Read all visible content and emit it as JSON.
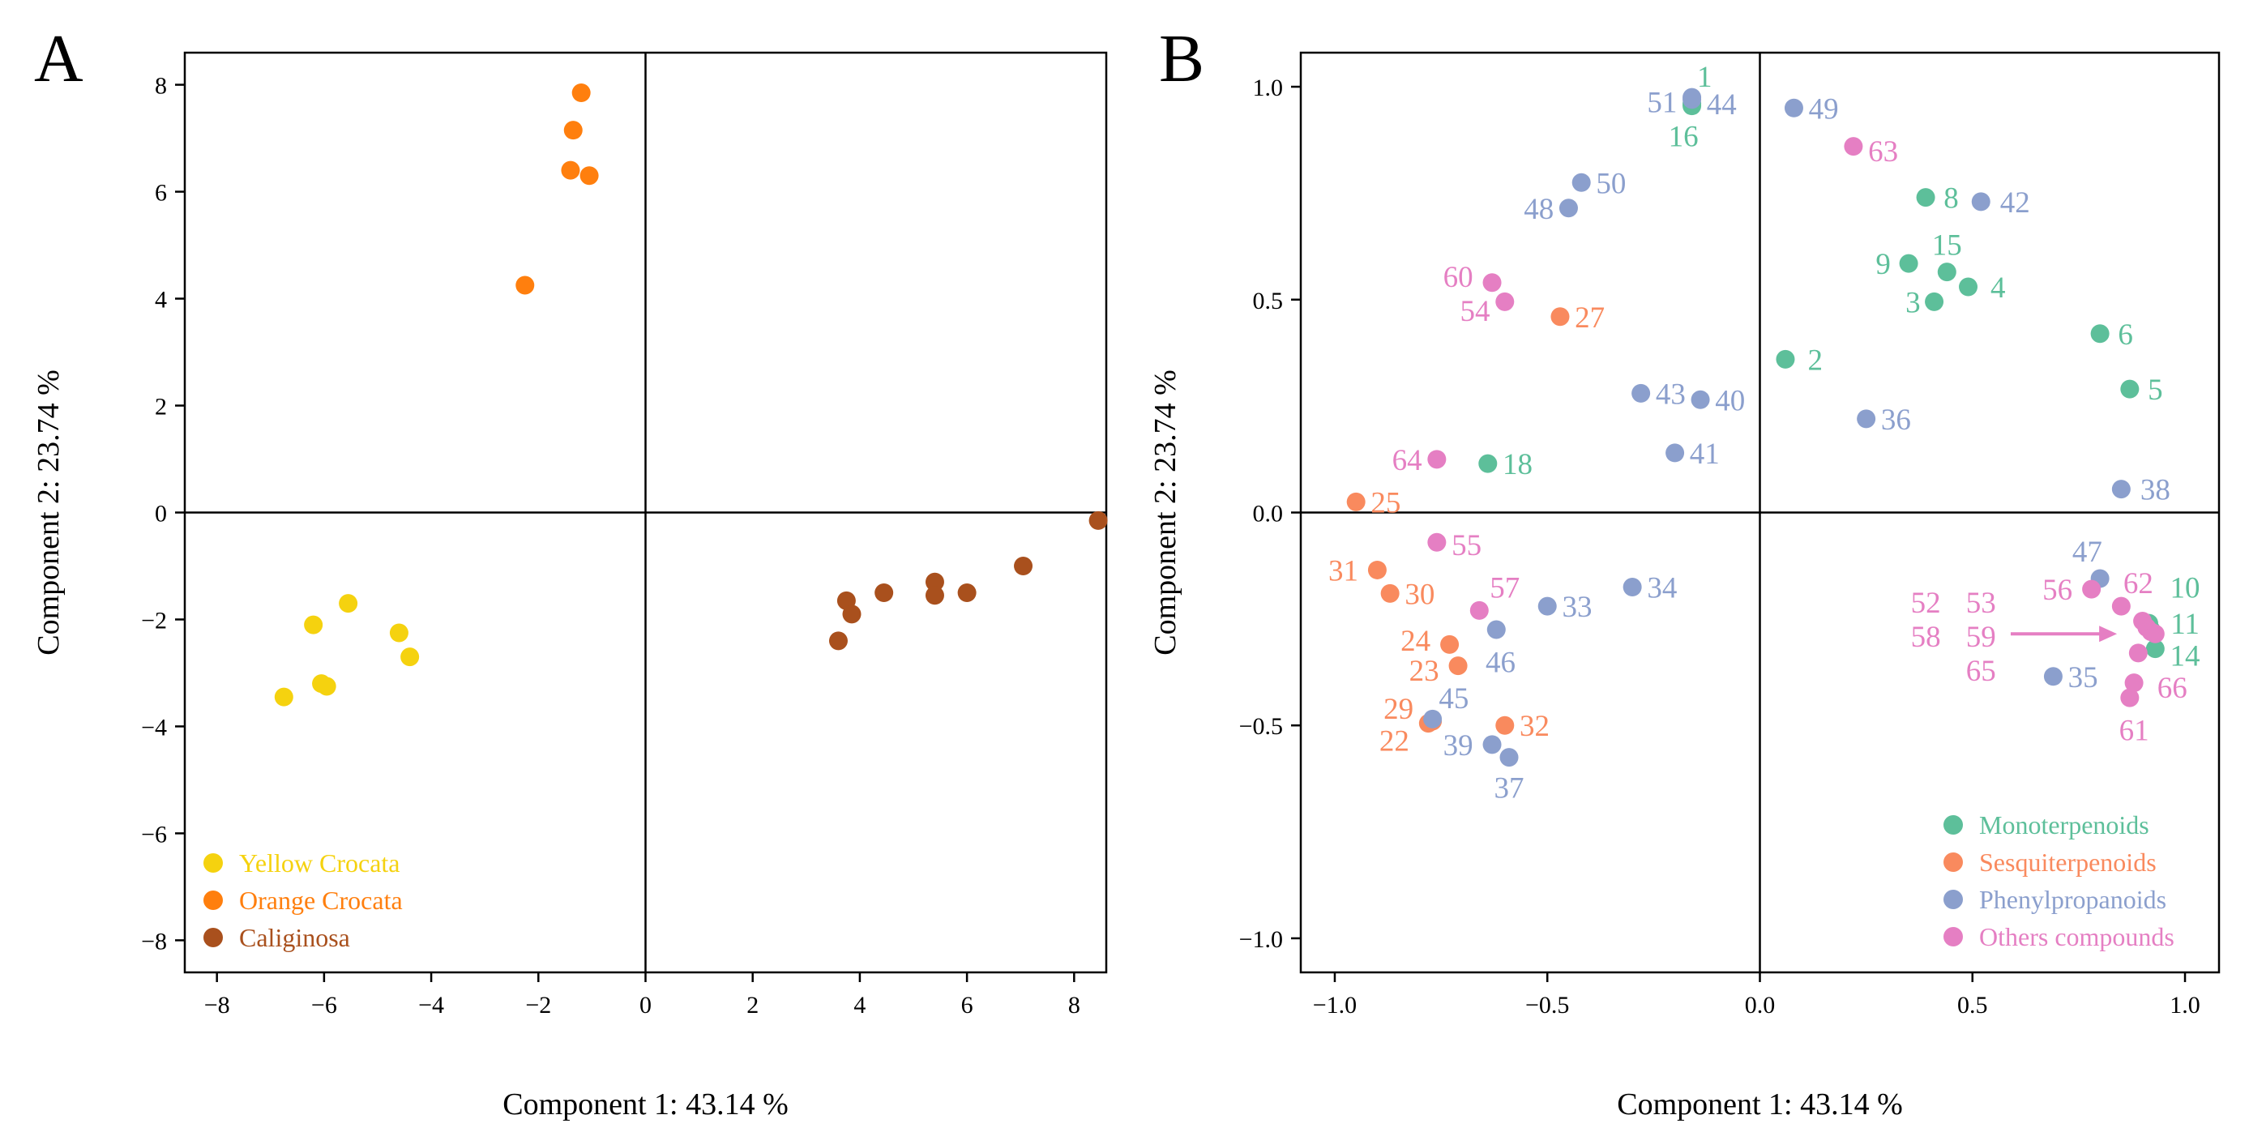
{
  "chart_data": [
    {
      "type": "scatter",
      "panel_label": "A",
      "title": "",
      "xlabel": "Component 1:  43.14 %",
      "ylabel": "Component 2:  23.74 %",
      "xlim": [
        -8.6,
        8.6
      ],
      "ylim": [
        -8.6,
        8.6
      ],
      "xticks": [
        {
          "value": -8,
          "label": "−8"
        },
        {
          "value": -6,
          "label": "−6"
        },
        {
          "value": -4,
          "label": "−4"
        },
        {
          "value": -2,
          "label": "−2"
        },
        {
          "value": 0,
          "label": "0"
        },
        {
          "value": 2,
          "label": "2"
        },
        {
          "value": 4,
          "label": "4"
        },
        {
          "value": 6,
          "label": "6"
        },
        {
          "value": 8,
          "label": "8"
        }
      ],
      "yticks": [
        {
          "value": -8,
          "label": "−8"
        },
        {
          "value": -6,
          "label": "−6"
        },
        {
          "value": -4,
          "label": "−4"
        },
        {
          "value": -2,
          "label": "−2"
        },
        {
          "value": 0,
          "label": "0"
        },
        {
          "value": 2,
          "label": "2"
        },
        {
          "value": 4,
          "label": "4"
        },
        {
          "value": 6,
          "label": "6"
        },
        {
          "value": 8,
          "label": "8"
        }
      ],
      "legend_position": "bottom-left",
      "series": [
        {
          "name": "Yellow Crocata",
          "color": "#f5d20f",
          "points": [
            {
              "x": -6.75,
              "y": -3.45
            },
            {
              "x": -6.2,
              "y": -2.1
            },
            {
              "x": -6.05,
              "y": -3.2
            },
            {
              "x": -5.95,
              "y": -3.25
            },
            {
              "x": -5.55,
              "y": -1.7
            },
            {
              "x": -4.6,
              "y": -2.25
            },
            {
              "x": -4.4,
              "y": -2.7
            }
          ]
        },
        {
          "name": "Orange Crocata",
          "color": "#ff7f0e",
          "points": [
            {
              "x": -2.25,
              "y": 4.25
            },
            {
              "x": -1.4,
              "y": 6.4
            },
            {
              "x": -1.35,
              "y": 7.15
            },
            {
              "x": -1.2,
              "y": 7.85
            },
            {
              "x": -1.05,
              "y": 6.3
            }
          ]
        },
        {
          "name": "Caliginosa",
          "color": "#a9501d",
          "points": [
            {
              "x": 3.6,
              "y": -2.4
            },
            {
              "x": 3.75,
              "y": -1.65
            },
            {
              "x": 3.85,
              "y": -1.9
            },
            {
              "x": 4.45,
              "y": -1.5
            },
            {
              "x": 5.4,
              "y": -1.3
            },
            {
              "x": 5.4,
              "y": -1.55
            },
            {
              "x": 6.0,
              "y": -1.5
            },
            {
              "x": 7.05,
              "y": -1.0
            },
            {
              "x": 8.45,
              "y": -0.15
            }
          ]
        }
      ]
    },
    {
      "type": "scatter",
      "panel_label": "B",
      "title": "",
      "xlabel": "Component 1:  43.14 %",
      "ylabel": "Component 2:  23.74 %",
      "xlim": [
        -1.08,
        1.08
      ],
      "ylim": [
        -1.08,
        1.08
      ],
      "xticks": [
        {
          "value": -1.0,
          "label": "−1.0"
        },
        {
          "value": -0.5,
          "label": "−0.5"
        },
        {
          "value": 0.0,
          "label": "0.0"
        },
        {
          "value": 0.5,
          "label": "0.5"
        },
        {
          "value": 1.0,
          "label": "1.0"
        }
      ],
      "yticks": [
        {
          "value": -1.0,
          "label": "−1.0"
        },
        {
          "value": -0.5,
          "label": "−0.5"
        },
        {
          "value": 0.0,
          "label": "0.0"
        },
        {
          "value": 0.5,
          "label": "0.5"
        },
        {
          "value": 1.0,
          "label": "1.0"
        }
      ],
      "legend_position": "bottom-right",
      "series": [
        {
          "name": "Monoterpenoids",
          "color": "#5dbf9a",
          "points": [
            {
              "x": -0.16,
              "y": 0.955,
              "id": "1"
            },
            {
              "x": 0.06,
              "y": 0.36,
              "id": "2"
            },
            {
              "x": 0.41,
              "y": 0.495,
              "id": "3"
            },
            {
              "x": 0.49,
              "y": 0.53,
              "id": "4"
            },
            {
              "x": 0.87,
              "y": 0.29,
              "id": "5"
            },
            {
              "x": 0.8,
              "y": 0.42,
              "id": "6"
            },
            {
              "x": 0.39,
              "y": 0.74,
              "id": "8"
            },
            {
              "x": 0.35,
              "y": 0.585,
              "id": "9"
            },
            {
              "x": 0.915,
              "y": -0.26,
              "id": "10"
            },
            {
              "x": 0.92,
              "y": -0.275,
              "id": "11"
            },
            {
              "x": 0.93,
              "y": -0.32,
              "id": "14"
            },
            {
              "x": 0.44,
              "y": 0.565,
              "id": "15"
            },
            {
              "x": -0.16,
              "y": 0.96,
              "id": "16"
            },
            {
              "x": -0.64,
              "y": 0.115,
              "id": "18"
            }
          ]
        },
        {
          "name": "Sesquiterpenoids",
          "color": "#f98a5e",
          "points": [
            {
              "x": -0.78,
              "y": -0.495,
              "id": "22"
            },
            {
              "x": -0.71,
              "y": -0.36,
              "id": "23"
            },
            {
              "x": -0.73,
              "y": -0.31,
              "id": "24"
            },
            {
              "x": -0.95,
              "y": 0.025,
              "id": "25"
            },
            {
              "x": -0.47,
              "y": 0.46,
              "id": "27"
            },
            {
              "x": -0.77,
              "y": -0.49,
              "id": "29"
            },
            {
              "x": -0.87,
              "y": -0.19,
              "id": "30"
            },
            {
              "x": -0.9,
              "y": -0.135,
              "id": "31"
            },
            {
              "x": -0.6,
              "y": -0.5,
              "id": "32"
            }
          ]
        },
        {
          "name": "Phenylpropanoids",
          "color": "#8b9fcd",
          "points": [
            {
              "x": -0.5,
              "y": -0.22,
              "id": "33"
            },
            {
              "x": -0.3,
              "y": -0.175,
              "id": "34"
            },
            {
              "x": 0.69,
              "y": -0.385,
              "id": "35"
            },
            {
              "x": 0.25,
              "y": 0.22,
              "id": "36"
            },
            {
              "x": -0.59,
              "y": -0.575,
              "id": "37"
            },
            {
              "x": 0.85,
              "y": 0.055,
              "id": "38"
            },
            {
              "x": -0.63,
              "y": -0.545,
              "id": "39"
            },
            {
              "x": -0.14,
              "y": 0.265,
              "id": "40"
            },
            {
              "x": -0.2,
              "y": 0.14,
              "id": "41"
            },
            {
              "x": 0.52,
              "y": 0.73,
              "id": "42"
            },
            {
              "x": -0.28,
              "y": 0.28,
              "id": "43"
            },
            {
              "x": -0.16,
              "y": 0.97,
              "id": "44"
            },
            {
              "x": -0.77,
              "y": -0.485,
              "id": "45"
            },
            {
              "x": -0.62,
              "y": -0.275,
              "id": "46"
            },
            {
              "x": 0.8,
              "y": -0.155,
              "id": "47"
            },
            {
              "x": -0.45,
              "y": 0.715,
              "id": "48"
            },
            {
              "x": 0.08,
              "y": 0.95,
              "id": "49"
            },
            {
              "x": -0.42,
              "y": 0.775,
              "id": "50"
            },
            {
              "x": -0.16,
              "y": 0.975,
              "id": "51"
            }
          ]
        },
        {
          "name": "Others compounds",
          "color": "#e57fc3",
          "points": [
            {
              "x": 0.9,
              "y": -0.255,
              "id": "52"
            },
            {
              "x": 0.91,
              "y": -0.27,
              "id": "53"
            },
            {
              "x": -0.6,
              "y": 0.495,
              "id": "54"
            },
            {
              "x": -0.76,
              "y": -0.07,
              "id": "55"
            },
            {
              "x": 0.78,
              "y": -0.18,
              "id": "56"
            },
            {
              "x": -0.66,
              "y": -0.23,
              "id": "57"
            },
            {
              "x": 0.92,
              "y": -0.28,
              "id": "58"
            },
            {
              "x": 0.93,
              "y": -0.285,
              "id": "59"
            },
            {
              "x": -0.63,
              "y": 0.54,
              "id": "60"
            },
            {
              "x": 0.87,
              "y": -0.435,
              "id": "61"
            },
            {
              "x": 0.85,
              "y": -0.22,
              "id": "62"
            },
            {
              "x": 0.22,
              "y": 0.86,
              "id": "63"
            },
            {
              "x": -0.76,
              "y": 0.125,
              "id": "64"
            },
            {
              "x": 0.89,
              "y": -0.33,
              "id": "65"
            },
            {
              "x": 0.88,
              "y": -0.4,
              "id": "66"
            }
          ]
        }
      ],
      "annotations": [
        {
          "text": "1",
          "series": "Monoterpenoids",
          "x": -0.13,
          "y": 1.025
        },
        {
          "text": "2",
          "series": "Monoterpenoids",
          "x": 0.13,
          "y": 0.36
        },
        {
          "text": "3",
          "series": "Monoterpenoids",
          "x": 0.36,
          "y": 0.495
        },
        {
          "text": "4",
          "series": "Monoterpenoids",
          "x": 0.56,
          "y": 0.53
        },
        {
          "text": "5",
          "series": "Monoterpenoids",
          "x": 0.93,
          "y": 0.29
        },
        {
          "text": "6",
          "series": "Monoterpenoids",
          "x": 0.86,
          "y": 0.42
        },
        {
          "text": "8",
          "series": "Monoterpenoids",
          "x": 0.45,
          "y": 0.74
        },
        {
          "text": "9",
          "series": "Monoterpenoids",
          "x": 0.29,
          "y": 0.585
        },
        {
          "text": "10",
          "series": "Monoterpenoids",
          "x": 1.0,
          "y": -0.175
        },
        {
          "text": "11",
          "series": "Monoterpenoids",
          "x": 1.0,
          "y": -0.26
        },
        {
          "text": "14",
          "series": "Monoterpenoids",
          "x": 1.0,
          "y": -0.335
        },
        {
          "text": "15",
          "series": "Monoterpenoids",
          "x": 0.44,
          "y": 0.63
        },
        {
          "text": "16",
          "series": "Monoterpenoids",
          "x": -0.18,
          "y": 0.885
        },
        {
          "text": "18",
          "series": "Monoterpenoids",
          "x": -0.57,
          "y": 0.115
        },
        {
          "text": "22",
          "series": "Sesquiterpenoids",
          "x": -0.86,
          "y": -0.535
        },
        {
          "text": "23",
          "series": "Sesquiterpenoids",
          "x": -0.79,
          "y": -0.37
        },
        {
          "text": "24",
          "series": "Sesquiterpenoids",
          "x": -0.81,
          "y": -0.3
        },
        {
          "text": "25",
          "series": "Sesquiterpenoids",
          "x": -0.88,
          "y": 0.025
        },
        {
          "text": "27",
          "series": "Sesquiterpenoids",
          "x": -0.4,
          "y": 0.46
        },
        {
          "text": "29",
          "series": "Sesquiterpenoids",
          "x": -0.85,
          "y": -0.46
        },
        {
          "text": "30",
          "series": "Sesquiterpenoids",
          "x": -0.8,
          "y": -0.19
        },
        {
          "text": "31",
          "series": "Sesquiterpenoids",
          "x": -0.98,
          "y": -0.135
        },
        {
          "text": "32",
          "series": "Sesquiterpenoids",
          "x": -0.53,
          "y": -0.5
        },
        {
          "text": "33",
          "series": "Phenylpropanoids",
          "x": -0.43,
          "y": -0.22
        },
        {
          "text": "34",
          "series": "Phenylpropanoids",
          "x": -0.23,
          "y": -0.175
        },
        {
          "text": "35",
          "series": "Phenylpropanoids",
          "x": 0.76,
          "y": -0.385
        },
        {
          "text": "36",
          "series": "Phenylpropanoids",
          "x": 0.32,
          "y": 0.22
        },
        {
          "text": "37",
          "series": "Phenylpropanoids",
          "x": -0.59,
          "y": -0.645
        },
        {
          "text": "38",
          "series": "Phenylpropanoids",
          "x": 0.93,
          "y": 0.055
        },
        {
          "text": "39",
          "series": "Phenylpropanoids",
          "x": -0.71,
          "y": -0.545
        },
        {
          "text": "40",
          "series": "Phenylpropanoids",
          "x": -0.07,
          "y": 0.265
        },
        {
          "text": "41",
          "series": "Phenylpropanoids",
          "x": -0.13,
          "y": 0.14
        },
        {
          "text": "42",
          "series": "Phenylpropanoids",
          "x": 0.6,
          "y": 0.73
        },
        {
          "text": "43",
          "series": "Phenylpropanoids",
          "x": -0.21,
          "y": 0.28
        },
        {
          "text": "44",
          "series": "Phenylpropanoids",
          "x": -0.09,
          "y": 0.96
        },
        {
          "text": "45",
          "series": "Phenylpropanoids",
          "x": -0.72,
          "y": -0.435
        },
        {
          "text": "46",
          "series": "Phenylpropanoids",
          "x": -0.61,
          "y": -0.35
        },
        {
          "text": "47",
          "series": "Phenylpropanoids",
          "x": 0.77,
          "y": -0.09
        },
        {
          "text": "48",
          "series": "Phenylpropanoids",
          "x": -0.52,
          "y": 0.715
        },
        {
          "text": "49",
          "series": "Phenylpropanoids",
          "x": 0.15,
          "y": 0.95
        },
        {
          "text": "50",
          "series": "Phenylpropanoids",
          "x": -0.35,
          "y": 0.775
        },
        {
          "text": "51",
          "series": "Phenylpropanoids",
          "x": -0.23,
          "y": 0.965
        },
        {
          "text": "52",
          "series": "Others compounds",
          "x": 0.39,
          "y": -0.21
        },
        {
          "text": "53",
          "series": "Others compounds",
          "x": 0.52,
          "y": -0.21
        },
        {
          "text": "54",
          "series": "Others compounds",
          "x": -0.67,
          "y": 0.475
        },
        {
          "text": "55",
          "series": "Others compounds",
          "x": -0.69,
          "y": -0.075
        },
        {
          "text": "56",
          "series": "Others compounds",
          "x": 0.7,
          "y": -0.18
        },
        {
          "text": "57",
          "series": "Others compounds",
          "x": -0.6,
          "y": -0.175
        },
        {
          "text": "58",
          "series": "Others compounds",
          "x": 0.39,
          "y": -0.29
        },
        {
          "text": "59",
          "series": "Others compounds",
          "x": 0.52,
          "y": -0.29
        },
        {
          "text": "60",
          "series": "Others compounds",
          "x": -0.71,
          "y": 0.555
        },
        {
          "text": "61",
          "series": "Others compounds",
          "x": 0.88,
          "y": -0.51
        },
        {
          "text": "62",
          "series": "Others compounds",
          "x": 0.89,
          "y": -0.165
        },
        {
          "text": "63",
          "series": "Others compounds",
          "x": 0.29,
          "y": 0.85
        },
        {
          "text": "64",
          "series": "Others compounds",
          "x": -0.83,
          "y": 0.125
        },
        {
          "text": "65",
          "series": "Others compounds",
          "x": 0.52,
          "y": -0.37
        },
        {
          "text": "66",
          "series": "Others compounds",
          "x": 0.97,
          "y": -0.41
        }
      ],
      "arrow": {
        "from": [
          0.59,
          -0.285
        ],
        "to": [
          0.84,
          -0.285
        ],
        "color": "#e57fc3"
      }
    }
  ]
}
